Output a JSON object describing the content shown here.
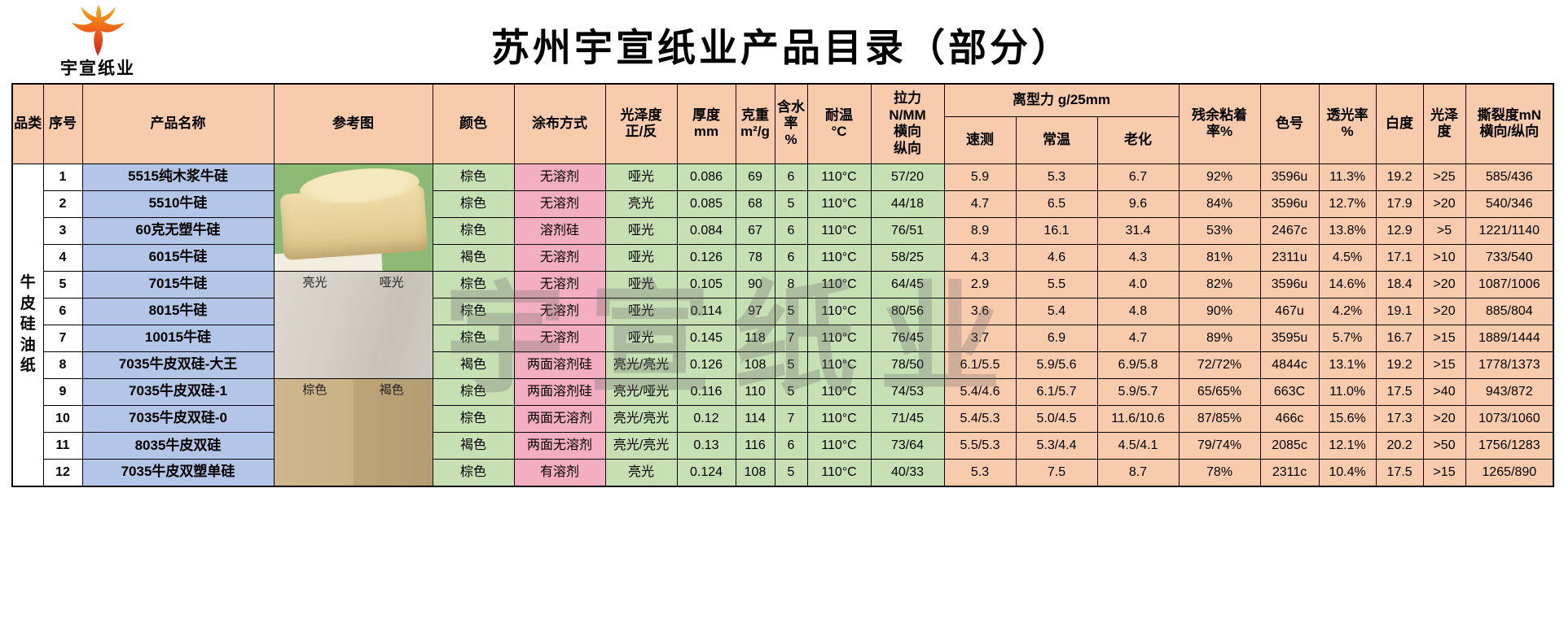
{
  "page": {
    "title": "苏州宇宣纸业产品目录（部分）",
    "logo_text": "宇宣纸业",
    "watermark": "宇宣纸业"
  },
  "colors": {
    "header_bg": "#F8CBAD",
    "green_bg": "#C6E0B4",
    "pink_bg": "#F3AEC1",
    "blue_bg": "#B4C6E7",
    "logo_red": "#D21F1B",
    "logo_orange": "#F9AC18"
  },
  "table": {
    "category": "牛皮硅油纸",
    "headers": {
      "category": "品类",
      "index": "序号",
      "product_name": "产品名称",
      "reference_image": "参考图",
      "color": "颜色",
      "coating_method": "涂布方式",
      "gloss_front_back": "光泽度\n正/反",
      "thickness": "厚度\nmm",
      "weight": "克重\nm²/g",
      "moisture": "含水\n率\n%",
      "temp_resistance": "耐温\n°C",
      "tension": "拉力\nN/MM\n横向\n纵向",
      "release_force": "离型力 g/25mm",
      "release_quick": "速测",
      "release_room": "常温",
      "release_aging": "老化",
      "residual_adhesion": "残余粘着\n率%",
      "color_code": "色号",
      "transmittance": "透光率\n%",
      "whiteness": "白度",
      "gloss": "光泽\n度",
      "tear_strength": "撕裂度mN\n横向/纵向"
    },
    "rows": [
      {
        "no": "1",
        "name": "5515纯木浆牛硅",
        "color": "棕色",
        "coating": "无溶剂",
        "gloss": "哑光",
        "thickness": "0.086",
        "weight": "69",
        "moisture": "6",
        "temp": "110°C",
        "tension": "57/20",
        "quick": "5.9",
        "room": "5.3",
        "aging": "6.7",
        "residual": "92%",
        "code": "3596u",
        "trans": "11.3%",
        "white": "19.2",
        "glossval": ">25",
        "tear": "585/436"
      },
      {
        "no": "2",
        "name": "5510牛硅",
        "color": "棕色",
        "coating": "无溶剂",
        "gloss": "亮光",
        "thickness": "0.085",
        "weight": "68",
        "moisture": "5",
        "temp": "110°C",
        "tension": "44/18",
        "quick": "4.7",
        "room": "6.5",
        "aging": "9.6",
        "residual": "84%",
        "code": "3596u",
        "trans": "12.7%",
        "white": "17.9",
        "glossval": ">20",
        "tear": "540/346"
      },
      {
        "no": "3",
        "name": "60克无塑牛硅",
        "color": "棕色",
        "coating": "溶剂硅",
        "gloss": "哑光",
        "thickness": "0.084",
        "weight": "67",
        "moisture": "6",
        "temp": "110°C",
        "tension": "76/51",
        "quick": "8.9",
        "room": "16.1",
        "aging": "31.4",
        "residual": "53%",
        "code": "2467c",
        "trans": "13.8%",
        "white": "12.9",
        "glossval": ">5",
        "tear": "1221/1140"
      },
      {
        "no": "4",
        "name": "6015牛硅",
        "color": "褐色",
        "coating": "无溶剂",
        "gloss": "哑光",
        "thickness": "0.126",
        "weight": "78",
        "moisture": "6",
        "temp": "110°C",
        "tension": "58/25",
        "quick": "4.3",
        "room": "4.6",
        "aging": "4.3",
        "residual": "81%",
        "code": "2311u",
        "trans": "4.5%",
        "white": "17.1",
        "glossval": ">10",
        "tear": "733/540"
      },
      {
        "no": "5",
        "name": "7015牛硅",
        "color": "棕色",
        "coating": "无溶剂",
        "gloss": "哑光",
        "thickness": "0.105",
        "weight": "90",
        "moisture": "8",
        "temp": "110°C",
        "tension": "64/45",
        "quick": "2.9",
        "room": "5.5",
        "aging": "4.0",
        "residual": "82%",
        "code": "3596u",
        "trans": "14.6%",
        "white": "18.4",
        "glossval": ">20",
        "tear": "1087/1006"
      },
      {
        "no": "6",
        "name": "8015牛硅",
        "color": "棕色",
        "coating": "无溶剂",
        "gloss": "哑光",
        "thickness": "0.114",
        "weight": "97",
        "moisture": "5",
        "temp": "110°C",
        "tension": "80/56",
        "quick": "3.6",
        "room": "5.4",
        "aging": "4.8",
        "residual": "90%",
        "code": "467u",
        "trans": "4.2%",
        "white": "19.1",
        "glossval": ">20",
        "tear": "885/804"
      },
      {
        "no": "7",
        "name": "10015牛硅",
        "color": "棕色",
        "coating": "无溶剂",
        "gloss": "哑光",
        "thickness": "0.145",
        "weight": "118",
        "moisture": "7",
        "temp": "110°C",
        "tension": "76/45",
        "quick": "3.7",
        "room": "6.9",
        "aging": "4.7",
        "residual": "89%",
        "code": "3595u",
        "trans": "5.7%",
        "white": "16.7",
        "glossval": ">15",
        "tear": "1889/1444"
      },
      {
        "no": "8",
        "name": "7035牛皮双硅-大王",
        "color": "褐色",
        "coating": "两面溶剂硅",
        "gloss": "亮光/亮光",
        "thickness": "0.126",
        "weight": "108",
        "moisture": "5",
        "temp": "110°C",
        "tension": "78/50",
        "quick": "6.1/5.5",
        "room": "5.9/5.6",
        "aging": "6.9/5.8",
        "residual": "72/72%",
        "code": "4844c",
        "trans": "13.1%",
        "white": "19.2",
        "glossval": ">15",
        "tear": "1778/1373"
      },
      {
        "no": "9",
        "name": "7035牛皮双硅-1",
        "color": "棕色",
        "coating": "两面溶剂硅",
        "gloss": "亮光/哑光",
        "thickness": "0.116",
        "weight": "110",
        "moisture": "5",
        "temp": "110°C",
        "tension": "74/53",
        "quick": "5.4/4.6",
        "room": "6.1/5.7",
        "aging": "5.9/5.7",
        "residual": "65/65%",
        "code": "663C",
        "trans": "11.0%",
        "white": "17.5",
        "glossval": ">40",
        "tear": "943/872"
      },
      {
        "no": "10",
        "name": "7035牛皮双硅-0",
        "color": "棕色",
        "coating": "两面无溶剂",
        "gloss": "亮光/亮光",
        "thickness": "0.12",
        "weight": "114",
        "moisture": "7",
        "temp": "110°C",
        "tension": "71/45",
        "quick": "5.4/5.3",
        "room": "5.0/4.5",
        "aging": "11.6/10.6",
        "residual": "87/85%",
        "code": "466c",
        "trans": "15.6%",
        "white": "17.3",
        "glossval": ">20",
        "tear": "1073/1060"
      },
      {
        "no": "11",
        "name": "8035牛皮双硅",
        "color": "褐色",
        "coating": "两面无溶剂",
        "gloss": "亮光/亮光",
        "thickness": "0.13",
        "weight": "116",
        "moisture": "6",
        "temp": "110°C",
        "tension": "73/64",
        "quick": "5.5/5.3",
        "room": "5.3/4.4",
        "aging": "4.5/4.1",
        "residual": "79/74%",
        "code": "2085c",
        "trans": "12.1%",
        "white": "20.2",
        "glossval": ">50",
        "tear": "1756/1283"
      },
      {
        "no": "12",
        "name": "7035牛皮双塑单硅",
        "color": "棕色",
        "coating": "有溶剂",
        "gloss": "亮光",
        "thickness": "0.124",
        "weight": "108",
        "moisture": "5",
        "temp": "110°C",
        "tension": "40/33",
        "quick": "5.3",
        "room": "7.5",
        "aging": "8.7",
        "residual": "78%",
        "code": "2311c",
        "trans": "10.4%",
        "white": "17.5",
        "glossval": ">15",
        "tear": "1265/890"
      }
    ]
  },
  "reference_images": [
    {
      "name": "paper-roll-photo",
      "labels": []
    },
    {
      "name": "gloss-matte-sample-photo",
      "labels": [
        "亮光",
        "哑光"
      ]
    },
    {
      "name": "brown-dark-sample-photo",
      "labels": [
        "棕色",
        "褐色"
      ]
    }
  ]
}
